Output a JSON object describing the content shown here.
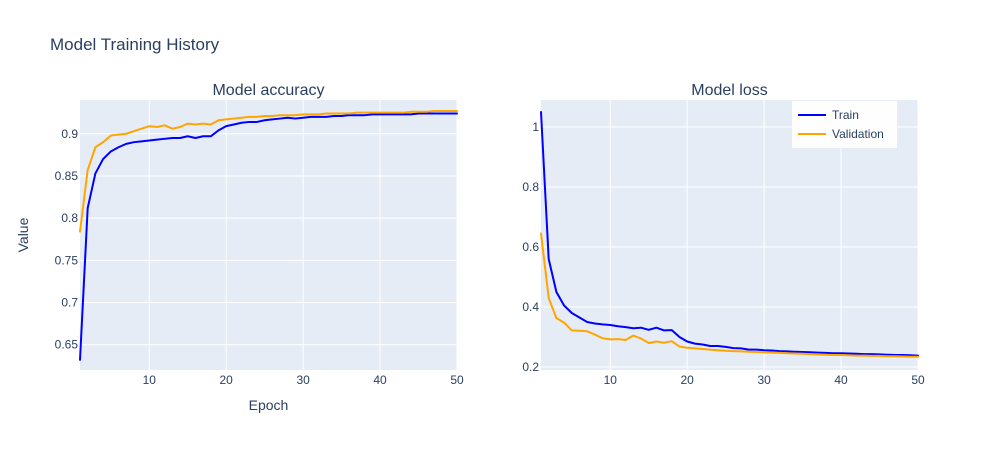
{
  "title": "Model Training History",
  "ylabel": "Value",
  "xlabel": "Epoch",
  "legend": {
    "train": "Train",
    "validation": "Validation"
  },
  "colors": {
    "train": "#0000ff",
    "validation": "#ffa500",
    "plot_bg": "#e5ecf6",
    "grid": "#ffffff",
    "text": "#2a3f5f"
  },
  "chart_data": [
    {
      "type": "line",
      "title": "Model accuracy",
      "xlabel": "Epoch",
      "ylabel": "Value",
      "xlim": [
        1,
        50
      ],
      "ylim": [
        0.62,
        0.94
      ],
      "xticks": [
        10,
        20,
        30,
        40,
        50
      ],
      "yticks": [
        0.65,
        0.7,
        0.75,
        0.8,
        0.85,
        0.9
      ],
      "ytick_labels": [
        "0.65",
        "0.7",
        "0.75",
        "0.8",
        "0.85",
        "0.9"
      ],
      "grid": true,
      "x": [
        1,
        2,
        3,
        4,
        5,
        6,
        7,
        8,
        9,
        10,
        11,
        12,
        13,
        14,
        15,
        16,
        17,
        18,
        19,
        20,
        21,
        22,
        23,
        24,
        25,
        26,
        27,
        28,
        29,
        30,
        31,
        32,
        33,
        34,
        35,
        36,
        37,
        38,
        39,
        40,
        41,
        42,
        43,
        44,
        45,
        46,
        47,
        48,
        49,
        50
      ],
      "series": [
        {
          "name": "Train",
          "color": "#0000ff",
          "values": [
            0.632,
            0.812,
            0.853,
            0.87,
            0.879,
            0.884,
            0.888,
            0.89,
            0.891,
            0.892,
            0.893,
            0.894,
            0.895,
            0.895,
            0.897,
            0.895,
            0.897,
            0.897,
            0.904,
            0.909,
            0.911,
            0.913,
            0.914,
            0.914,
            0.916,
            0.917,
            0.918,
            0.919,
            0.918,
            0.919,
            0.92,
            0.92,
            0.92,
            0.921,
            0.921,
            0.922,
            0.922,
            0.922,
            0.923,
            0.923,
            0.923,
            0.923,
            0.923,
            0.923,
            0.924,
            0.924,
            0.924,
            0.924,
            0.924,
            0.924
          ]
        },
        {
          "name": "Validation",
          "color": "#ffa500",
          "values": [
            0.784,
            0.857,
            0.884,
            0.89,
            0.898,
            0.899,
            0.9,
            0.903,
            0.906,
            0.909,
            0.908,
            0.91,
            0.906,
            0.908,
            0.912,
            0.911,
            0.912,
            0.911,
            0.916,
            0.917,
            0.918,
            0.919,
            0.92,
            0.92,
            0.921,
            0.921,
            0.922,
            0.922,
            0.922,
            0.923,
            0.923,
            0.923,
            0.924,
            0.924,
            0.924,
            0.924,
            0.925,
            0.925,
            0.925,
            0.925,
            0.925,
            0.925,
            0.925,
            0.926,
            0.926,
            0.926,
            0.927,
            0.927,
            0.927,
            0.927
          ]
        }
      ]
    },
    {
      "type": "line",
      "title": "Model loss",
      "xlabel": "",
      "ylabel": "",
      "xlim": [
        1,
        50
      ],
      "ylim": [
        0.19,
        1.09
      ],
      "xticks": [
        10,
        20,
        30,
        40,
        50
      ],
      "yticks": [
        0.2,
        0.4,
        0.6,
        0.8,
        1
      ],
      "ytick_labels": [
        "0.2",
        "0.4",
        "0.6",
        "0.8",
        "1"
      ],
      "grid": true,
      "legend_position": "top-right",
      "x": [
        1,
        2,
        3,
        4,
        5,
        6,
        7,
        8,
        9,
        10,
        11,
        12,
        13,
        14,
        15,
        16,
        17,
        18,
        19,
        20,
        21,
        22,
        23,
        24,
        25,
        26,
        27,
        28,
        29,
        30,
        31,
        32,
        33,
        34,
        35,
        36,
        37,
        38,
        39,
        40,
        41,
        42,
        43,
        44,
        45,
        46,
        47,
        48,
        49,
        50
      ],
      "series": [
        {
          "name": "Train",
          "color": "#0000ff",
          "values": [
            1.05,
            0.56,
            0.45,
            0.405,
            0.38,
            0.365,
            0.35,
            0.345,
            0.342,
            0.34,
            0.336,
            0.333,
            0.329,
            0.331,
            0.324,
            0.331,
            0.322,
            0.323,
            0.3,
            0.285,
            0.278,
            0.275,
            0.27,
            0.27,
            0.267,
            0.263,
            0.262,
            0.258,
            0.258,
            0.256,
            0.255,
            0.253,
            0.252,
            0.251,
            0.25,
            0.249,
            0.248,
            0.247,
            0.246,
            0.246,
            0.245,
            0.244,
            0.243,
            0.243,
            0.242,
            0.241,
            0.24,
            0.24,
            0.239,
            0.238
          ]
        },
        {
          "name": "Validation",
          "color": "#ffa500",
          "values": [
            0.645,
            0.43,
            0.363,
            0.348,
            0.322,
            0.321,
            0.319,
            0.308,
            0.296,
            0.292,
            0.293,
            0.29,
            0.305,
            0.295,
            0.28,
            0.285,
            0.281,
            0.286,
            0.268,
            0.264,
            0.262,
            0.26,
            0.258,
            0.256,
            0.254,
            0.253,
            0.252,
            0.251,
            0.25,
            0.249,
            0.248,
            0.247,
            0.246,
            0.245,
            0.244,
            0.243,
            0.242,
            0.241,
            0.24,
            0.24,
            0.239,
            0.238,
            0.238,
            0.237,
            0.237,
            0.236,
            0.236,
            0.235,
            0.234,
            0.234
          ]
        }
      ]
    }
  ]
}
